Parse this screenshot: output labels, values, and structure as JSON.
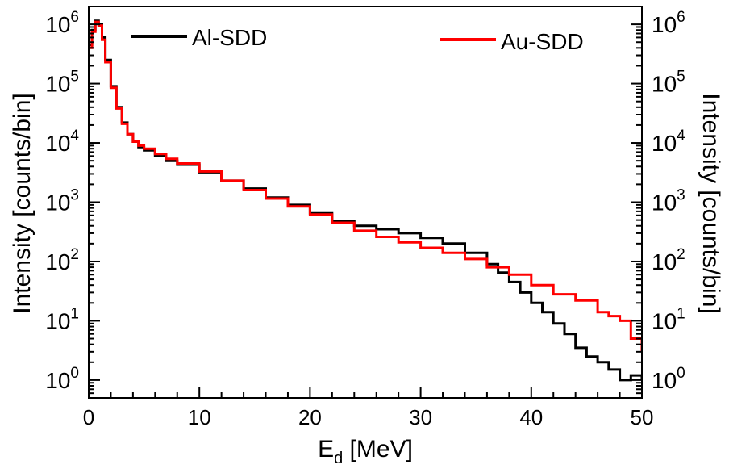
{
  "chart_data": {
    "type": "line",
    "xlabel_main": "E",
    "xlabel_sub": "d",
    "xlabel_unit": " [MeV]",
    "ylabel_left": "Intensity [counts/bin]",
    "ylabel_right": "Intensity [counts/bin]",
    "xlim": [
      0,
      50
    ],
    "ylim": [
      0.5,
      2000000
    ],
    "y_scale": "log",
    "grid": false,
    "legend_placement": "top",
    "x_ticks": [
      "0",
      "10",
      "20",
      "30",
      "40",
      "50"
    ],
    "y_tick_bases": [
      "10",
      "10",
      "10",
      "10",
      "10",
      "10",
      "10"
    ],
    "y_tick_exponents": [
      "0",
      "1",
      "2",
      "3",
      "4",
      "5",
      "6"
    ],
    "series": [
      {
        "name": "Al-SDD",
        "color": "#000000",
        "x": [
          0.0,
          0.3,
          0.6,
          0.9,
          1.2,
          1.5,
          2.0,
          2.5,
          3.0,
          3.5,
          4.0,
          4.5,
          5.0,
          6.0,
          7.0,
          8.0,
          10.0,
          12.0,
          14.0,
          16.0,
          18.0,
          20.0,
          22.0,
          24.0,
          26.0,
          28.0,
          30.0,
          32.0,
          34.0,
          36.0,
          37.0,
          38.0,
          39.0,
          40.0,
          41.0,
          42.0,
          43.0,
          44.0,
          45.0,
          46.0,
          47.0,
          48.0,
          49.0,
          50.0
        ],
        "y": [
          450000,
          800000,
          1150000,
          1000000,
          600000,
          250000,
          90000,
          40000,
          22000,
          14000,
          10500,
          8500,
          7500,
          6000,
          5000,
          4300,
          3200,
          2300,
          1700,
          1200,
          900,
          650,
          480,
          400,
          350,
          300,
          250,
          200,
          140,
          90,
          65,
          45,
          30,
          20,
          14,
          9,
          6,
          3.5,
          2.5,
          2,
          1.5,
          1,
          1.2,
          1
        ]
      },
      {
        "name": "Au-SDD",
        "color": "#ff0000",
        "x": [
          0.0,
          0.3,
          0.6,
          0.9,
          1.2,
          1.5,
          2.0,
          2.5,
          3.0,
          3.5,
          4.0,
          4.5,
          5.0,
          6.0,
          7.0,
          8.0,
          10.0,
          12.0,
          14.0,
          16.0,
          18.0,
          20.0,
          22.0,
          24.0,
          26.0,
          28.0,
          30.0,
          32.0,
          34.0,
          36.0,
          38.0,
          40.0,
          42.0,
          44.0,
          46.0,
          47.0,
          48.0,
          49.0,
          50.0
        ],
        "y": [
          400000,
          750000,
          1100000,
          950000,
          550000,
          230000,
          85000,
          38000,
          21000,
          14000,
          10500,
          9000,
          8000,
          6500,
          5400,
          4500,
          3300,
          2300,
          1600,
          1150,
          850,
          620,
          450,
          330,
          260,
          210,
          170,
          140,
          110,
          80,
          60,
          40,
          28,
          22,
          14,
          12,
          10,
          5,
          3
        ]
      }
    ]
  }
}
